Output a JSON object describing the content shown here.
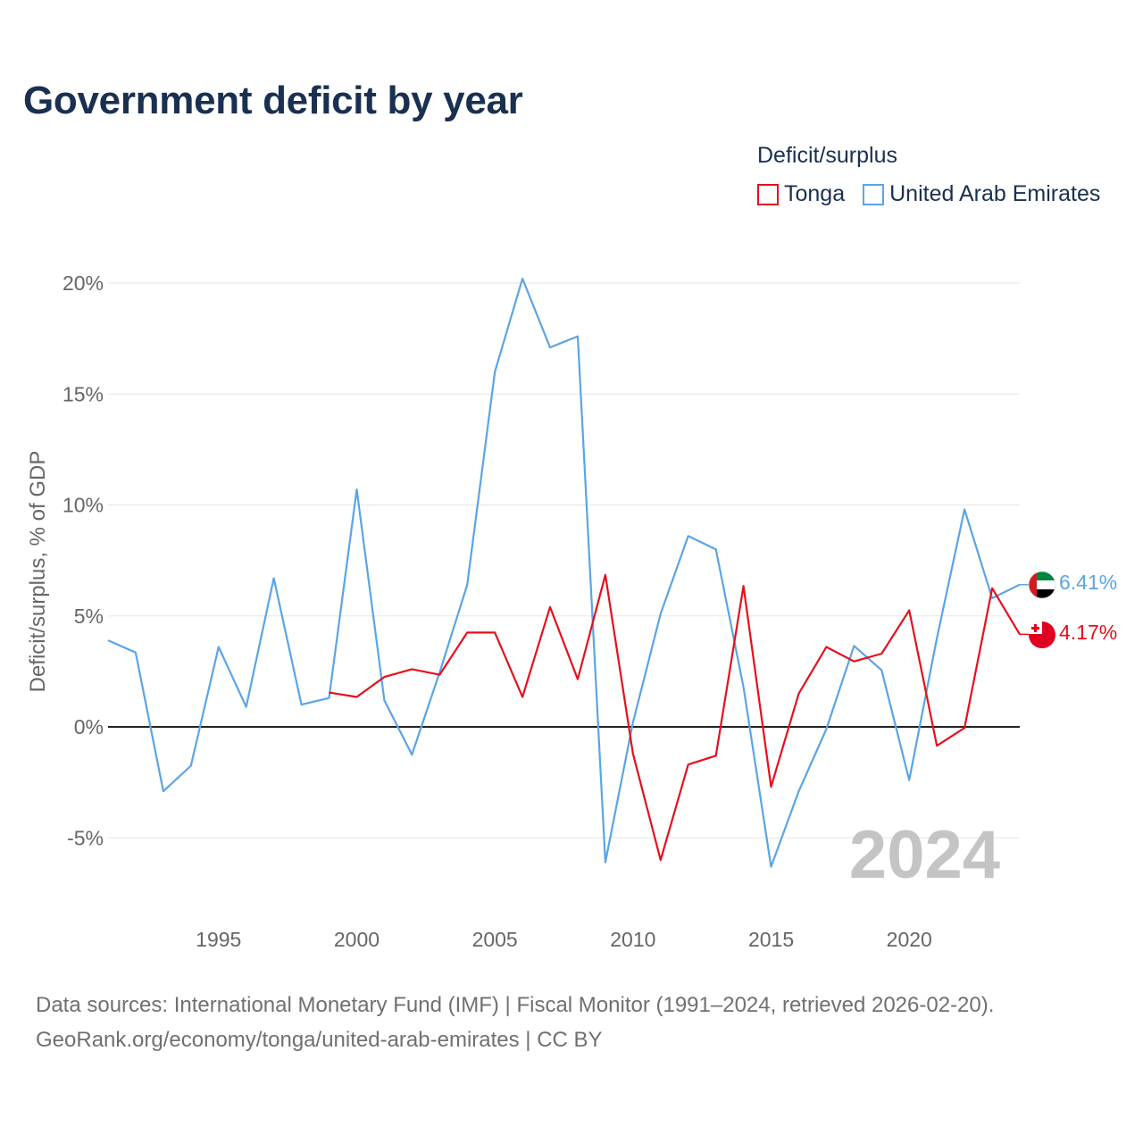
{
  "title": "Government deficit by year",
  "legend": {
    "title": "Deficit/surplus",
    "items": [
      {
        "label": "Tonga",
        "color": "#e5101b"
      },
      {
        "label": "United Arab Emirates",
        "color": "#5ba4e6"
      }
    ]
  },
  "footer": {
    "line1": "Data sources: International Monetary Fund (IMF) | Fiscal Monitor (1991–2024, retrieved 2026-02-20).",
    "line2": "GeoRank.org/economy/tonga/united-arab-emirates | CC BY"
  },
  "chart_data": {
    "type": "line",
    "title": "Government deficit by year",
    "xlabel": "",
    "ylabel": "Deficit/surplus, % of GDP",
    "xlim": [
      1991,
      2024
    ],
    "ylim": [
      -7.5,
      22
    ],
    "y_ticks": [
      -5,
      0,
      5,
      10,
      15,
      20
    ],
    "y_tick_labels": [
      "-5%",
      "0%",
      "5%",
      "10%",
      "15%",
      "20%"
    ],
    "x_ticks": [
      1995,
      2000,
      2005,
      2010,
      2015,
      2020
    ],
    "x_tick_labels": [
      "1995",
      "2000",
      "2005",
      "2010",
      "2015",
      "2020"
    ],
    "grid": true,
    "watermark_year": "2024",
    "series": [
      {
        "name": "United Arab Emirates",
        "color": "#5ba4e6",
        "x": [
          1991,
          1992,
          1993,
          1994,
          1995,
          1996,
          1997,
          1998,
          1999,
          2000,
          2001,
          2002,
          2003,
          2004,
          2005,
          2006,
          2007,
          2008,
          2009,
          2010,
          2011,
          2012,
          2013,
          2014,
          2015,
          2016,
          2017,
          2018,
          2019,
          2020,
          2021,
          2022,
          2023,
          2024
        ],
        "values": [
          3.9,
          3.35,
          -2.9,
          -1.75,
          3.6,
          0.9,
          6.7,
          1.0,
          1.3,
          10.7,
          1.2,
          -1.25,
          2.45,
          6.4,
          16.0,
          20.2,
          17.1,
          17.6,
          -6.1,
          0.2,
          5.1,
          8.6,
          8.0,
          1.8,
          -6.3,
          -2.9,
          -0.1,
          3.65,
          2.55,
          -2.4,
          4.0,
          9.8,
          5.8,
          6.41
        ],
        "end_label": "6.41%"
      },
      {
        "name": "Tonga",
        "color": "#e5101b",
        "x": [
          1999,
          2000,
          2001,
          2002,
          2003,
          2004,
          2005,
          2006,
          2007,
          2008,
          2009,
          2010,
          2011,
          2012,
          2013,
          2014,
          2015,
          2016,
          2017,
          2018,
          2019,
          2020,
          2021,
          2022,
          2023,
          2024
        ],
        "values": [
          1.55,
          1.35,
          2.25,
          2.6,
          2.35,
          4.25,
          4.25,
          1.35,
          5.4,
          2.15,
          6.85,
          -1.2,
          -6.0,
          -1.7,
          -1.3,
          6.35,
          -2.7,
          1.5,
          3.6,
          2.95,
          3.3,
          5.25,
          -0.85,
          -0.05,
          6.25,
          4.17
        ],
        "end_label": "4.17%"
      }
    ]
  }
}
